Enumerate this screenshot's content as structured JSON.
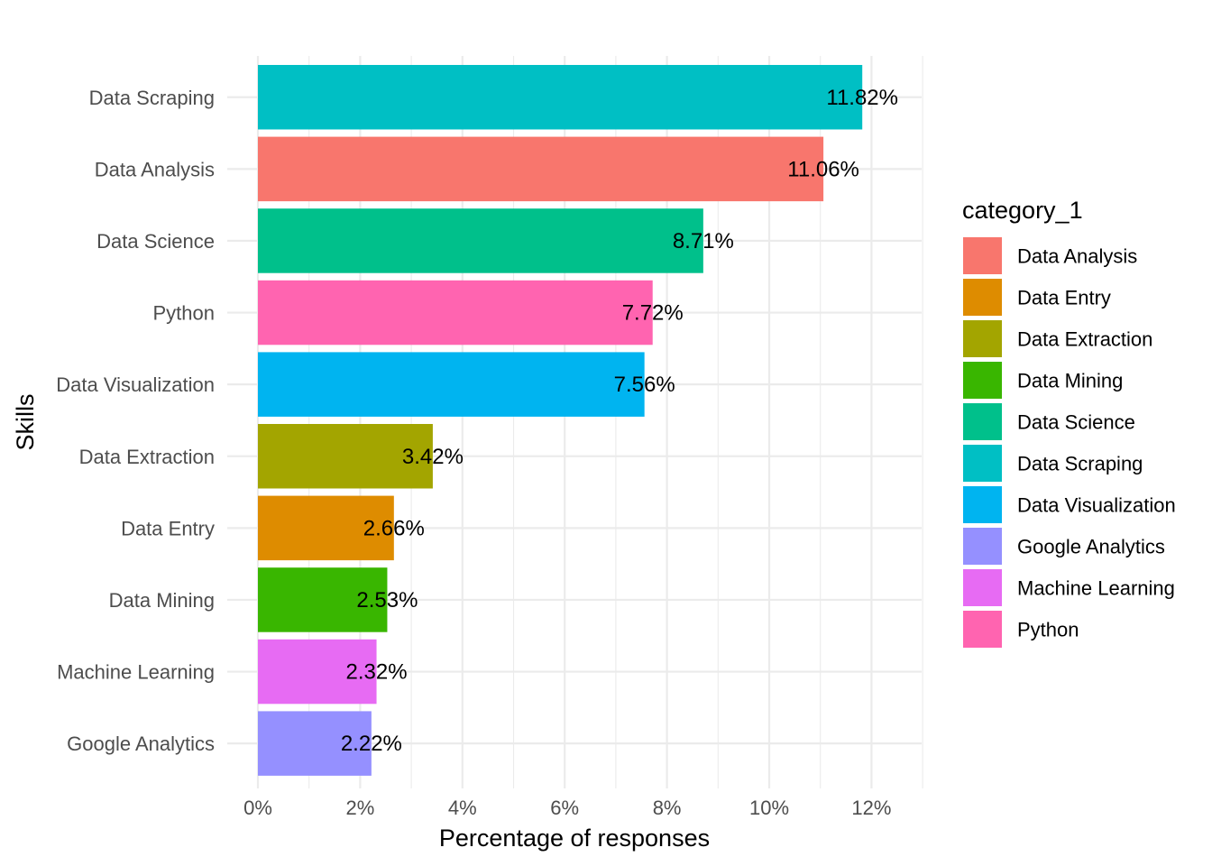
{
  "chart_data": {
    "type": "bar",
    "orientation": "horizontal",
    "xlabel": "Percentage of responses",
    "ylabel": "Skills",
    "xlim": [
      0,
      13
    ],
    "x_ticks": [
      0,
      2,
      4,
      6,
      8,
      10,
      12
    ],
    "x_tick_labels": [
      "0%",
      "2%",
      "4%",
      "6%",
      "8%",
      "10%",
      "12%"
    ],
    "grid": true,
    "categories": [
      "Data Scraping",
      "Data Analysis",
      "Data Science",
      "Python",
      "Data Visualization",
      "Data Extraction",
      "Data Entry",
      "Data Mining",
      "Machine Learning",
      "Google Analytics"
    ],
    "values": [
      11.82,
      11.06,
      8.71,
      7.72,
      7.56,
      3.42,
      2.66,
      2.53,
      2.32,
      2.22
    ],
    "value_labels": [
      "11.82%",
      "11.06%",
      "8.71%",
      "7.72%",
      "7.56%",
      "3.42%",
      "2.66%",
      "2.53%",
      "2.32%",
      "2.22%"
    ],
    "colors": [
      "#00BFC4",
      "#F8766D",
      "#00C08B",
      "#FF64B0",
      "#00B4F0",
      "#A3A500",
      "#DE8C00",
      "#39B600",
      "#E76BF3",
      "#9590FF"
    ],
    "legend": {
      "title": "category_1",
      "placement": "right",
      "entries": [
        {
          "label": "Data Analysis",
          "color": "#F8766D"
        },
        {
          "label": "Data Entry",
          "color": "#DE8C00"
        },
        {
          "label": "Data Extraction",
          "color": "#A3A500"
        },
        {
          "label": "Data Mining",
          "color": "#39B600"
        },
        {
          "label": "Data Science",
          "color": "#00C08B"
        },
        {
          "label": "Data Scraping",
          "color": "#00BFC4"
        },
        {
          "label": "Data Visualization",
          "color": "#00B4F0"
        },
        {
          "label": "Google Analytics",
          "color": "#9590FF"
        },
        {
          "label": "Machine Learning",
          "color": "#E76BF3"
        },
        {
          "label": "Python",
          "color": "#FF64B0"
        }
      ]
    }
  }
}
